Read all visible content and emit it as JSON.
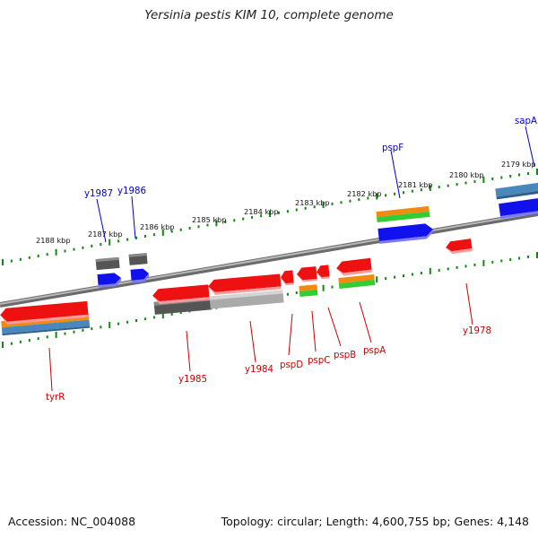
{
  "title": "Yersinia pestis KIM 10, complete genome",
  "footer": {
    "accession": "Accession: NC_004088",
    "topology": "Topology: circular; Length: 4,600,755 bp; Genes: 4,148"
  },
  "scale_labels": [
    "2188 kbp",
    "2187 kbp",
    "2186 kbp",
    "2185 kbp",
    "2184 kbp",
    "2183 kbp",
    "2182 kbp",
    "2181 kbp",
    "2180 kbp",
    "2179 kbp"
  ],
  "genes": [
    {
      "name": "tyrR",
      "strand": "reverse"
    },
    {
      "name": "y1987",
      "strand": "forward"
    },
    {
      "name": "y1986",
      "strand": "forward"
    },
    {
      "name": "y1985",
      "strand": "reverse"
    },
    {
      "name": "y1984",
      "strand": "reverse"
    },
    {
      "name": "pspD",
      "strand": "reverse"
    },
    {
      "name": "pspC",
      "strand": "reverse"
    },
    {
      "name": "pspB",
      "strand": "reverse"
    },
    {
      "name": "pspA",
      "strand": "reverse"
    },
    {
      "name": "pspF",
      "strand": "forward"
    },
    {
      "name": "y1978",
      "strand": "reverse"
    },
    {
      "name": "sapA",
      "strand": "forward"
    }
  ],
  "colors": {
    "forward_label": "#0000cc",
    "reverse_label": "#cc0000",
    "gene_red": "#ee1111",
    "gene_blue": "#1111ee",
    "gene_gray": "#555555",
    "gene_lightgray": "#aaaaaa",
    "band_orange": "#f08a10",
    "band_green": "#33cc33",
    "band_steel": "#4a88bb",
    "tick_green": "#118811",
    "backbone": "#888888"
  }
}
